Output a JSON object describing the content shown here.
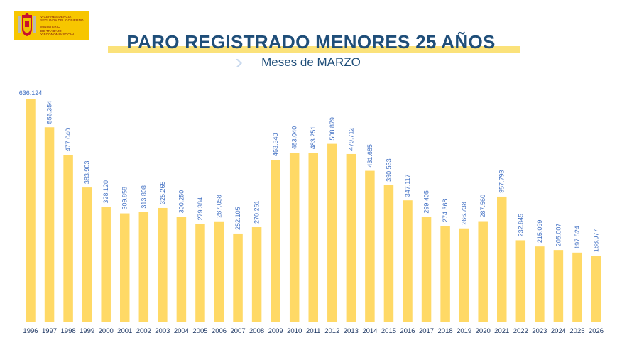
{
  "header": {
    "logo_lines": [
      "Vicepresidencia",
      "Segunda del Gobierno",
      "",
      "Ministerio",
      "de Trabajo",
      "y Economía Social"
    ],
    "title": "PARO REGISTRADO MENORES 25 AÑOS",
    "subtitle": "Meses de MARZO"
  },
  "colors": {
    "bar": "#ffd966",
    "label": "#4472c4",
    "title": "#1f4e79",
    "band": "#fbe27a",
    "logo_bg": "#f7c600"
  },
  "chart_data": {
    "type": "bar",
    "title": "PARO REGISTRADO MENORES 25 AÑOS",
    "subtitle": "Meses de MARZO",
    "categories": [
      "1996",
      "1997",
      "1998",
      "1999",
      "2000",
      "2001",
      "2002",
      "2003",
      "2004",
      "2005",
      "2006",
      "2007",
      "2008",
      "2009",
      "2010",
      "2011",
      "2012",
      "2013",
      "2014",
      "2015",
      "2016",
      "2017",
      "2018",
      "2019",
      "2020",
      "2021",
      "2022",
      "2023",
      "2024",
      "2025",
      "2026"
    ],
    "values": [
      636124,
      556354,
      477040,
      383903,
      328120,
      309858,
      313808,
      325265,
      300250,
      279384,
      287058,
      252105,
      270261,
      463340,
      483040,
      483251,
      508879,
      479712,
      431685,
      390533,
      347117,
      299405,
      274368,
      266738,
      287560,
      357793,
      232845,
      215099,
      205007,
      197524,
      188977
    ],
    "labels": [
      "636.124",
      "556.354",
      "477.040",
      "383.903",
      "328.120",
      "309.858",
      "313.808",
      "325.265",
      "300.250",
      "279.384",
      "287.058",
      "252.105",
      "270.261",
      "463.340",
      "483.040",
      "483.251",
      "508.879",
      "479.712",
      "431.685",
      "390.533",
      "347.117",
      "299.405",
      "274.368",
      "266.738",
      "287.560",
      "357.793",
      "232.845",
      "215.099",
      "205.007",
      "197.524",
      "188.977"
    ],
    "ylim": [
      0,
      636124
    ],
    "grid": false,
    "legend": "none"
  }
}
